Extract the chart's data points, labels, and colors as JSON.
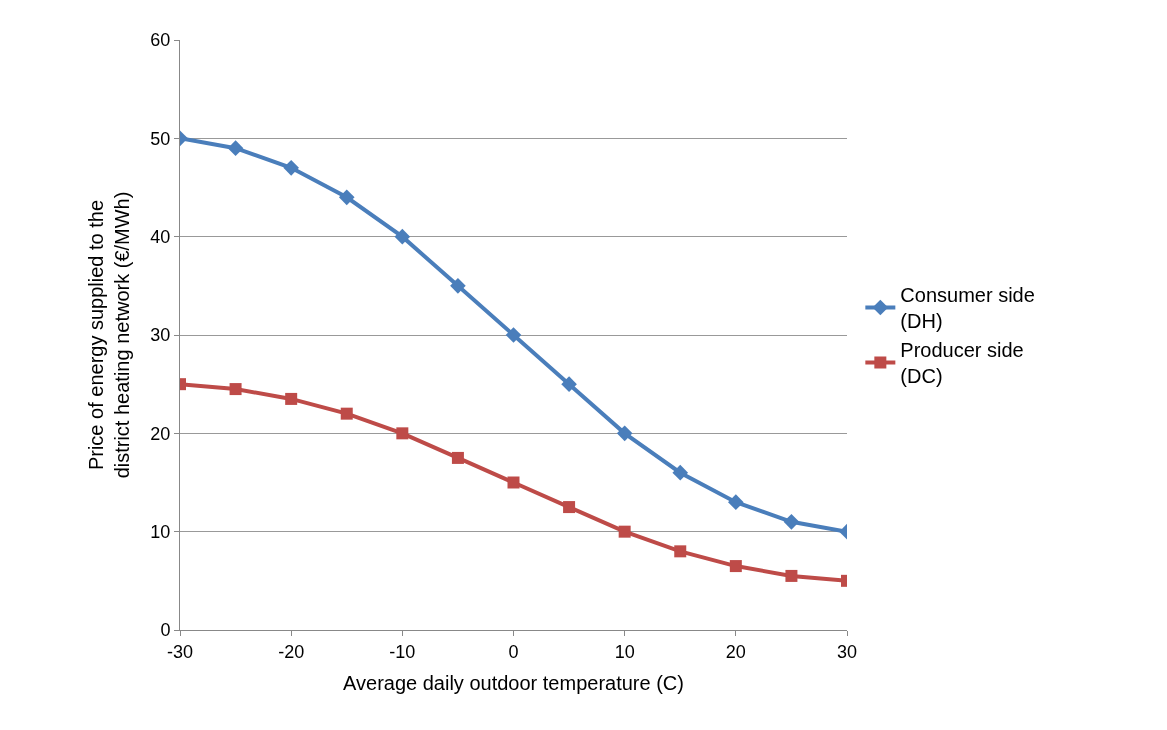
{
  "chart_data": {
    "type": "line",
    "xlabel": "Average daily outdoor temperature (C)",
    "ylabel": "Price of energy supplied to the district heating network (€/MWh)",
    "x": [
      -30,
      -25,
      -20,
      -15,
      -10,
      -5,
      0,
      5,
      10,
      15,
      20,
      25,
      30
    ],
    "series": [
      {
        "name": "Consumer side (DH)",
        "color": "#4a7ebb",
        "marker": "diamond",
        "values": [
          50,
          49,
          47,
          44,
          40,
          35,
          30,
          25,
          20,
          16,
          13,
          11,
          10
        ]
      },
      {
        "name": "Producer side (DC)",
        "color": "#be4b48",
        "marker": "square",
        "values": [
          25,
          24.5,
          23.5,
          22,
          20,
          17.5,
          15,
          12.5,
          10,
          8,
          6.5,
          5.5,
          5
        ]
      }
    ],
    "xlim": [
      -30,
      30
    ],
    "xticks": [
      -30,
      -20,
      -10,
      0,
      10,
      20,
      30
    ],
    "ylim": [
      0,
      60
    ],
    "yticks": [
      0,
      10,
      20,
      30,
      40,
      50,
      60
    ],
    "grid": "y",
    "legend": "right",
    "line_style": "solid"
  }
}
